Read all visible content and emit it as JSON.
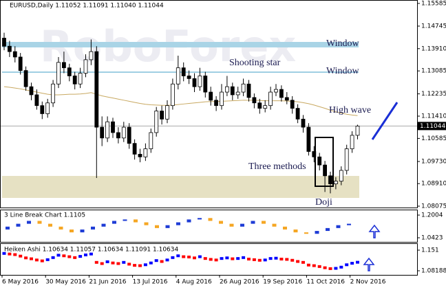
{
  "header": "EURUSD,Daily 1.11052 1.11091 1.11040 1.11044",
  "watermark": "RoboForex",
  "chart_data": [
    {
      "type": "candlestick",
      "categories": [
        "6 May 2016",
        null,
        null,
        null,
        null,
        null,
        null,
        null,
        "30 May 2016",
        null,
        null,
        null,
        null,
        null,
        null,
        null,
        "21 Jun 2016",
        null,
        null,
        null,
        null,
        null,
        null,
        null,
        "13 Jul 2016",
        null,
        null,
        null,
        null,
        null,
        null,
        null,
        "4 Aug 2016",
        null,
        null,
        null,
        null,
        null,
        null,
        null,
        "26 Aug 2016",
        null,
        null,
        null,
        null,
        null,
        null,
        null,
        "19 Sep 2016",
        null,
        null,
        null,
        null,
        null,
        null,
        null,
        "11 Oct 2016",
        null,
        null,
        null,
        null,
        null,
        null,
        null,
        "2 Nov 2016",
        null
      ],
      "open": [
        1.143,
        1.14,
        1.138,
        1.136,
        1.131,
        1.125,
        1.122,
        1.118,
        1.115,
        1.119,
        1.126,
        1.134,
        1.132,
        1.129,
        1.126,
        1.13,
        1.135,
        1.138,
        1.11,
        1.106,
        1.112,
        1.108,
        1.106,
        1.11,
        1.104,
        1.1,
        1.099,
        1.102,
        1.108,
        1.116,
        1.113,
        1.118,
        1.126,
        1.132,
        1.129,
        1.128,
        1.125,
        1.129,
        1.123,
        1.12,
        1.118,
        1.123,
        1.125,
        1.122,
        1.123,
        1.126,
        1.121,
        1.119,
        1.117,
        1.118,
        1.123,
        1.124,
        1.121,
        1.12,
        1.117,
        1.113,
        1.11,
        1.101,
        1.099,
        1.096,
        1.092,
        1.089,
        1.09,
        1.094,
        1.102,
        1.107
      ],
      "high": [
        1.145,
        1.142,
        1.14,
        1.1375,
        1.1325,
        1.1265,
        1.124,
        1.1195,
        1.1205,
        1.1275,
        1.136,
        1.138,
        1.1335,
        1.1305,
        1.132,
        1.137,
        1.1425,
        1.14,
        1.114,
        1.114,
        1.1135,
        1.11,
        1.112,
        1.1115,
        1.1055,
        1.102,
        1.104,
        1.1095,
        1.1175,
        1.118,
        1.12,
        1.128,
        1.1365,
        1.134,
        1.131,
        1.13,
        1.132,
        1.1305,
        1.125,
        1.1215,
        1.126,
        1.129,
        1.1265,
        1.125,
        1.128,
        1.1275,
        1.1225,
        1.1205,
        1.12,
        1.125,
        1.126,
        1.1255,
        1.123,
        1.1215,
        1.1185,
        1.1145,
        1.1115,
        1.103,
        1.1005,
        1.0975,
        1.0935,
        1.0915,
        1.0955,
        1.1035,
        1.1085,
        1.1109
      ],
      "low": [
        1.1385,
        1.136,
        1.134,
        1.1295,
        1.1235,
        1.12,
        1.1165,
        1.113,
        1.1135,
        1.1175,
        1.1245,
        1.13,
        1.127,
        1.124,
        1.1245,
        1.1285,
        1.133,
        1.0912,
        1.103,
        1.1045,
        1.106,
        1.104,
        1.1045,
        1.102,
        1.098,
        1.097,
        1.0975,
        1.1005,
        1.1065,
        1.111,
        1.1115,
        1.1165,
        1.124,
        1.127,
        1.126,
        1.123,
        1.1235,
        1.121,
        1.118,
        1.116,
        1.1165,
        1.1215,
        1.12,
        1.1205,
        1.1215,
        1.1195,
        1.117,
        1.115,
        1.1155,
        1.1165,
        1.1215,
        1.1195,
        1.1185,
        1.115,
        1.1115,
        1.108,
        1.0995,
        1.097,
        1.094,
        1.086,
        1.0855,
        1.087,
        1.0885,
        1.0925,
        1.1005,
        1.1055
      ],
      "close": [
        1.14,
        1.138,
        1.136,
        1.131,
        1.125,
        1.122,
        1.118,
        1.115,
        1.119,
        1.126,
        1.134,
        1.132,
        1.129,
        1.126,
        1.13,
        1.135,
        1.138,
        1.11,
        1.106,
        1.112,
        1.108,
        1.106,
        1.11,
        1.104,
        1.1,
        1.099,
        1.102,
        1.108,
        1.116,
        1.113,
        1.118,
        1.126,
        1.132,
        1.129,
        1.128,
        1.125,
        1.129,
        1.123,
        1.12,
        1.118,
        1.123,
        1.125,
        1.122,
        1.123,
        1.126,
        1.121,
        1.119,
        1.117,
        1.118,
        1.123,
        1.124,
        1.121,
        1.12,
        1.117,
        1.113,
        1.11,
        1.101,
        1.099,
        1.096,
        1.092,
        1.089,
        1.09,
        1.094,
        1.102,
        1.107,
        1.1104
      ],
      "overlays": [
        {
          "color": "#c8a860",
          "values": [
            1.125,
            1.1248,
            1.1245,
            1.1242,
            1.1238,
            1.1234,
            1.123,
            1.1226,
            1.1222,
            1.122,
            1.122,
            1.1221,
            1.1222,
            1.1222,
            1.1223,
            1.1225,
            1.1228,
            1.1222,
            1.1216,
            1.1212,
            1.1208,
            1.1204,
            1.12,
            1.1196,
            1.1192,
            1.1188,
            1.1185,
            1.1183,
            1.1182,
            1.1181,
            1.1181,
            1.1182,
            1.1184,
            1.1186,
            1.1188,
            1.119,
            1.1192,
            1.1194,
            1.1195,
            1.1195,
            1.1196,
            1.1197,
            1.1198,
            1.1199,
            1.12,
            1.12,
            1.12,
            1.1199,
            1.1198,
            1.1198,
            1.1198,
            1.1198,
            1.1197,
            1.1196,
            1.1194,
            1.1191,
            1.1187,
            1.1182,
            1.1176,
            1.117,
            1.1163,
            1.1157,
            1.1152,
            1.1148,
            1.1145,
            1.1143
          ]
        }
      ],
      "last_price": 1.11044,
      "ylim": [
        1.08024,
        1.15661
      ],
      "yticks": [
        1.15585,
        1.14745,
        {
          "value": 1.1391,
          "label": "1.13910"
        },
        1.13085,
        1.12235,
        {
          "value": 1.1141,
          "label": "1.11410"
        },
        1.10585,
        {
          "value": 1.0973,
          "label": "1.09730"
        },
        {
          "value": 1.0891,
          "label": "1.08910"
        },
        1.08075
      ],
      "annotations": [
        "Window",
        "Window",
        "Shooting star",
        "High wave",
        "Three methods",
        "Doji"
      ]
    },
    {
      "type": "line_break",
      "label": "3 Line Break Chart 1.1105",
      "open": [
        1.1,
        1.12,
        1.14,
        1.16,
        1.14,
        1.12,
        1.1,
        1.08,
        1.1,
        1.12,
        1.14,
        1.16,
        1.17,
        1.15,
        1.13,
        1.11,
        1.13,
        1.15,
        1.17,
        1.18,
        1.16,
        1.14,
        1.12,
        1.14,
        1.16,
        1.14,
        1.12,
        1.1,
        1.08,
        1.07,
        1.09,
        1.11,
        1.13
      ],
      "close": [
        1.12,
        1.14,
        1.16,
        1.14,
        1.12,
        1.1,
        1.08,
        1.1,
        1.12,
        1.14,
        1.16,
        1.17,
        1.15,
        1.13,
        1.11,
        1.13,
        1.15,
        1.17,
        1.18,
        1.16,
        1.14,
        1.12,
        1.14,
        1.16,
        1.14,
        1.12,
        1.1,
        1.08,
        1.07,
        1.09,
        1.11,
        1.13,
        1.14
      ],
      "up_color": "#1e3cd6",
      "down_color": "#f5a623",
      "ylim": [
        1.0136,
        1.234
      ],
      "yticks": [
        1.2004,
        1.0423
      ]
    },
    {
      "type": "heiken_ashi",
      "label": "Heiken Ashi 1.10634 1.11057 1.10634 1.11091 1.10634",
      "values": [
        1.14,
        1.138,
        1.136,
        1.131,
        1.125,
        1.122,
        1.118,
        1.115,
        1.119,
        1.126,
        1.134,
        1.132,
        1.129,
        1.126,
        1.13,
        1.135,
        1.138,
        1.11,
        1.106,
        1.112,
        1.108,
        1.106,
        1.11,
        1.104,
        1.1,
        1.099,
        1.102,
        1.108,
        1.116,
        1.113,
        1.118,
        1.126,
        1.132,
        1.129,
        1.128,
        1.125,
        1.129,
        1.123,
        1.12,
        1.118,
        1.123,
        1.125,
        1.122,
        1.123,
        1.126,
        1.121,
        1.119,
        1.117,
        1.118,
        1.123,
        1.124,
        1.121,
        1.12,
        1.117,
        1.113,
        1.11,
        1.101,
        1.099,
        1.096,
        1.092,
        1.089,
        1.09,
        1.094,
        1.102,
        1.107,
        1.1104
      ],
      "up_color": "#0000ff",
      "down_color": "#ff0000",
      "ylim": [
        1.0681,
        1.1717
      ],
      "yticks": [
        1.151,
        1.08188
      ]
    }
  ]
}
